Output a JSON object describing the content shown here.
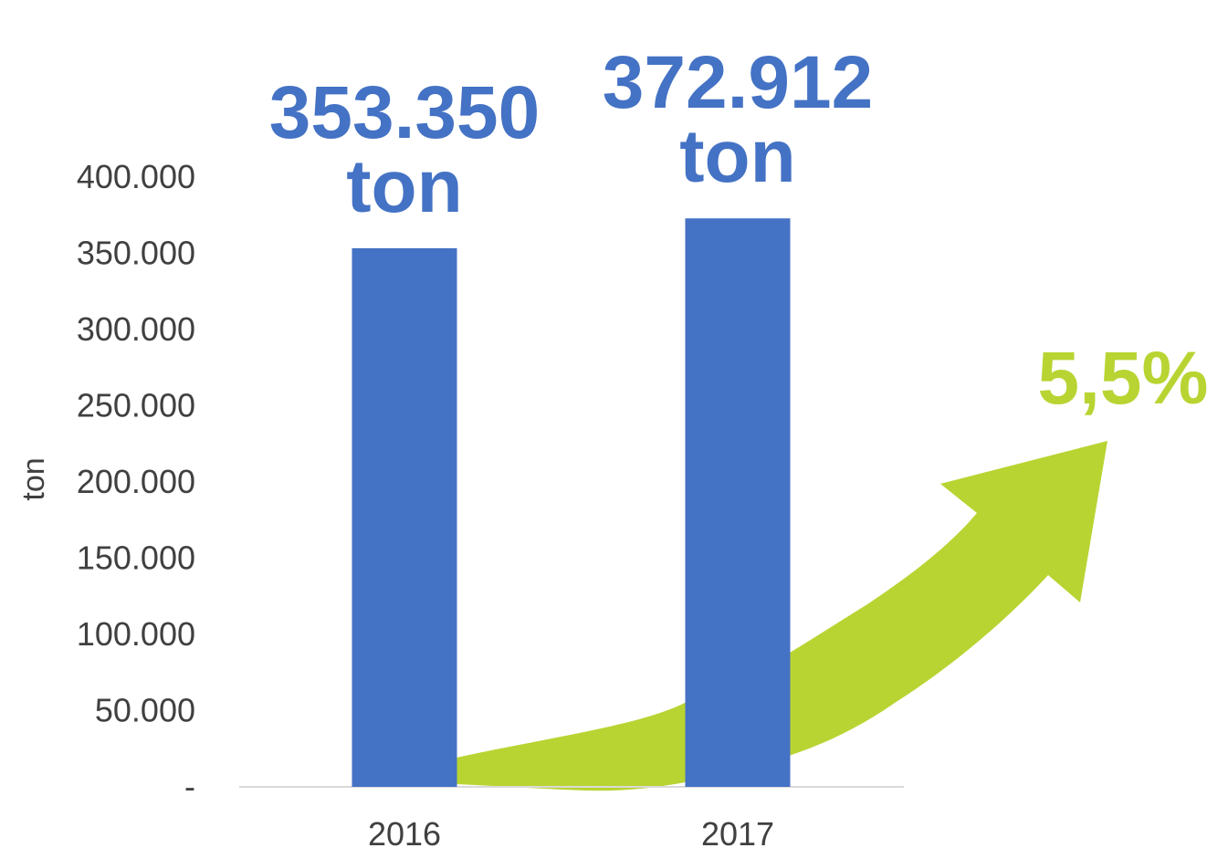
{
  "chart_data": {
    "type": "bar",
    "categories": [
      "2016",
      "2017"
    ],
    "values": [
      353350,
      372912
    ],
    "ylabel": "ton",
    "ylim": [
      0,
      400000
    ],
    "yticks": [
      {
        "value": 0,
        "label": "-"
      },
      {
        "value": 50000,
        "label": "50.000"
      },
      {
        "value": 100000,
        "label": "100.000"
      },
      {
        "value": 150000,
        "label": "150.000"
      },
      {
        "value": 200000,
        "label": "200.000"
      },
      {
        "value": 250000,
        "label": "250.000"
      },
      {
        "value": 300000,
        "label": "300.000"
      },
      {
        "value": 350000,
        "label": "350.000"
      },
      {
        "value": 400000,
        "label": "400.000"
      }
    ],
    "data_labels": [
      {
        "number": "353.350",
        "unit": "ton"
      },
      {
        "number": "372.912",
        "unit": "ton"
      }
    ],
    "grid": false,
    "annotation": {
      "text": "5,5%",
      "shape": "upward-curved-arrow"
    }
  },
  "colors": {
    "bar": "#4472C4",
    "arrow": "#B8D432",
    "axis_line": "#D9D9D9",
    "text": "#404040"
  }
}
